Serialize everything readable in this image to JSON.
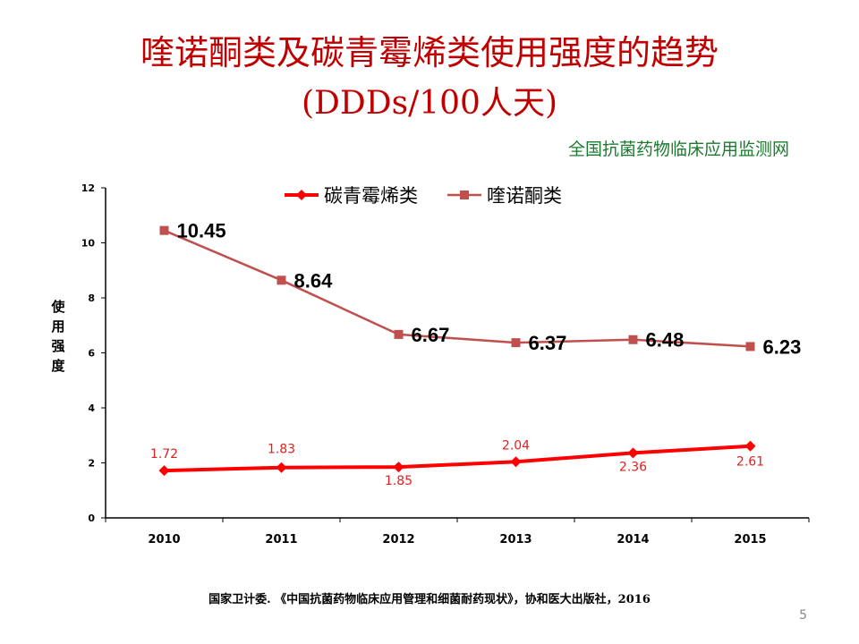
{
  "slide": {
    "title_line1": "喹诺酮类及碳青霉烯类使用强度的趋势",
    "title_line2": "(DDDs/100人天)",
    "source_note": "全国抗菌药物临床应用监测网",
    "citation": "国家卫计委. 《中国抗菌药物临床应用管理和细菌耐药现状》，协和医大出版社，2016",
    "page_number": "5"
  },
  "chart_data": {
    "type": "line",
    "title": "",
    "xlabel": "",
    "ylabel": "使用强度",
    "x": [
      "2010",
      "2011",
      "2012",
      "2013",
      "2014",
      "2015"
    ],
    "ylim": [
      0,
      12
    ],
    "yticks": [
      "0",
      "2",
      "4",
      "6",
      "8",
      "10",
      "12"
    ],
    "grid": false,
    "legend_position": "top",
    "series": [
      {
        "name": "碳青霉烯类",
        "values": [
          1.72,
          1.83,
          1.85,
          2.04,
          2.36,
          2.61
        ],
        "labels": [
          "1.72",
          "1.83",
          "1.85",
          "2.04",
          "2.36",
          "2.61"
        ],
        "color": "#ff0000",
        "marker": "diamond"
      },
      {
        "name": "喹诺酮类",
        "values": [
          10.45,
          8.64,
          6.67,
          6.37,
          6.48,
          6.23
        ],
        "labels": [
          "10.45",
          "8.64",
          "6.67",
          "6.37",
          "6.48",
          "6.23"
        ],
        "color": "#c0504d",
        "marker": "square"
      }
    ]
  }
}
